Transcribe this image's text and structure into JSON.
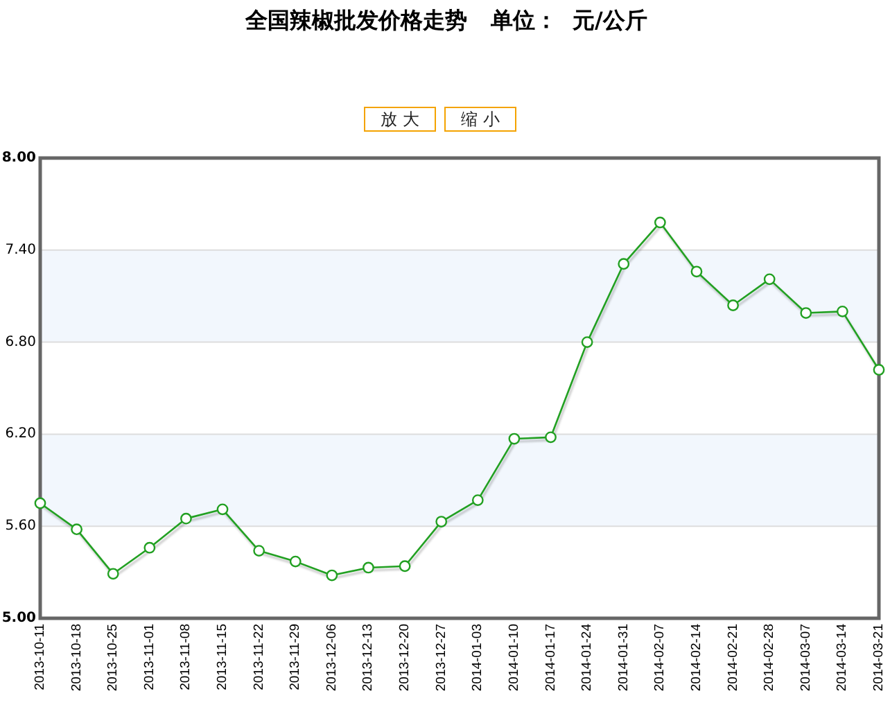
{
  "chart_data": {
    "type": "line",
    "title": "全国辣椒批发价格走势   单位：  元/公斤",
    "annotations": [
      "放 大",
      "缩 小"
    ],
    "categories": [
      "2013-10-11",
      "2013-10-18",
      "2013-10-25",
      "2013-11-01",
      "2013-11-08",
      "2013-11-15",
      "2013-11-22",
      "2013-11-29",
      "2013-12-06",
      "2013-12-13",
      "2013-12-20",
      "2013-12-27",
      "2014-01-03",
      "2014-01-10",
      "2014-01-17",
      "2014-01-24",
      "2014-01-31",
      "2014-02-07",
      "2014-02-14",
      "2014-02-21",
      "2014-02-28",
      "2014-03-07",
      "2014-03-14",
      "2014-03-21"
    ],
    "series": [
      {
        "color": "#22a022",
        "values": [
          5.75,
          5.58,
          5.29,
          5.46,
          5.65,
          5.71,
          5.44,
          5.37,
          5.28,
          5.33,
          5.34,
          5.63,
          5.77,
          6.17,
          6.18,
          6.8,
          7.31,
          7.58,
          7.26,
          7.04,
          7.21,
          6.99,
          7.0,
          6.62
        ]
      }
    ],
    "ylim": [
      5,
      8
    ],
    "yticks": [
      {
        "value": 5,
        "label": "5.00"
      },
      {
        "value": 5.6,
        "label": "5.60"
      },
      {
        "value": 6.2,
        "label": "6.20"
      },
      {
        "value": 6.8,
        "label": "6.80"
      },
      {
        "value": 7.4,
        "label": "7.40"
      },
      {
        "value": 8,
        "label": "8.00"
      }
    ],
    "grid": "y",
    "bands": [
      {
        "axis": "y",
        "from": 5.6,
        "to": 6.2,
        "color": "#f2f7fd"
      },
      {
        "axis": "y",
        "from": 6.8,
        "to": 7.4,
        "color": "#f2f7fd"
      }
    ],
    "marker": "circle",
    "line_style": "solid"
  }
}
